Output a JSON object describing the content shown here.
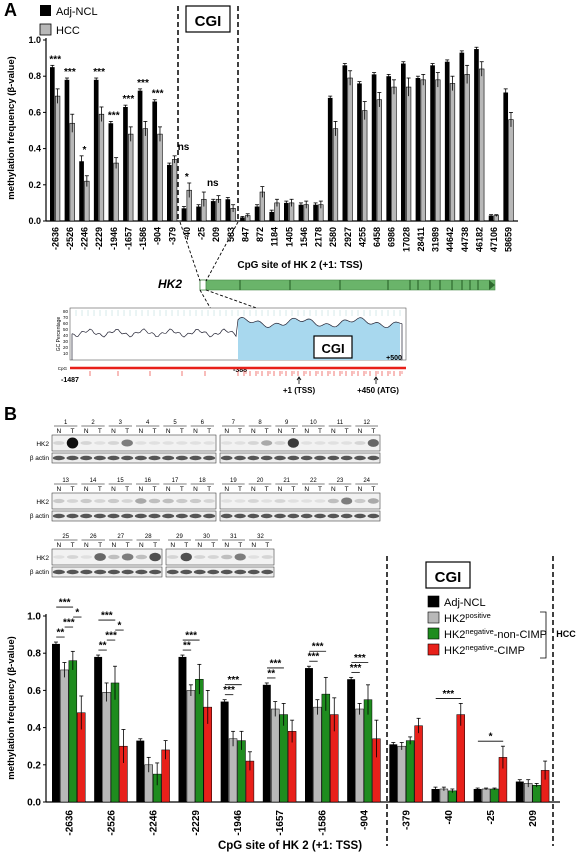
{
  "panelA": {
    "label": "A",
    "cgi_label": "CGI",
    "ylabel": "methylation frequency (β-value)",
    "xlabel": "CpG site of HK 2 (+1: TSS)",
    "legend": [
      "Adj-NCL",
      "HCC"
    ],
    "gene_label": "HK2",
    "island": {
      "ylabel": "GC Percentage",
      "cgi": "CGI",
      "start": "-1487",
      "left": "-388",
      "right": "+500",
      "tss": "+1 (TSS)",
      "atg": "+450 (ATG)",
      "cg": "CpG",
      "yticks": [
        "80",
        "70",
        "60",
        "50",
        "40",
        "30",
        "20",
        "10"
      ]
    }
  },
  "panelB": {
    "label": "B",
    "blot_rows": [
      "HK2",
      "β actin"
    ],
    "lane_letters": [
      "N",
      "T"
    ],
    "blot_groups": [
      [
        "1",
        "2",
        "3",
        "4",
        "5",
        "6"
      ],
      [
        "7",
        "8",
        "9",
        "10",
        "11",
        "12"
      ],
      [
        "13",
        "14",
        "15",
        "16",
        "17",
        "18"
      ],
      [
        "19",
        "20",
        "21",
        "22",
        "23",
        "24"
      ],
      [
        "25",
        "26",
        "27",
        "28"
      ],
      [
        "29",
        "30",
        "31",
        "32"
      ]
    ],
    "cgi_label": "CGI",
    "hcc_label": "HCC",
    "ylabel": "methylation frequency (β-value)",
    "xlabel": "CpG site of HK 2 (+1: TSS)",
    "legend": [
      {
        "text": "Adj-NCL",
        "sup": "",
        "suffix": ""
      },
      {
        "text": "HK2",
        "sup": "positive",
        "suffix": ""
      },
      {
        "text": "HK2",
        "sup": "negative",
        "suffix": "-non-CIMP"
      },
      {
        "text": "HK2",
        "sup": "negative",
        "suffix": "-CIMP"
      }
    ]
  },
  "colors": {
    "black": "#000000",
    "gray": "#b8b8b8",
    "green": "#1e8c1e",
    "red": "#e8201a",
    "island": "#a8d8ee",
    "gene": "#6ab46a"
  },
  "chart_data": [
    {
      "type": "bar",
      "title": "",
      "xlabel": "CpG site of HK 2 (+1: TSS)",
      "ylabel": "methylation frequency (β-value)",
      "ylim": [
        0,
        1.0
      ],
      "yticks": [
        "0.0",
        "0.2",
        "0.4",
        "0.6",
        "0.8",
        "1.0"
      ],
      "legend_position": "top-left",
      "categories": [
        "-2636",
        "-2526",
        "-2246",
        "-2229",
        "-1946",
        "-1657",
        "-1586",
        "-904",
        "-379",
        "-40",
        "-25",
        "209",
        "583",
        "847",
        "872",
        "1184",
        "1405",
        "1546",
        "2178",
        "2580",
        "2927",
        "4255",
        "6458",
        "6986",
        "17028",
        "28411",
        "31989",
        "44642",
        "44738",
        "46182",
        "47106",
        "58659"
      ],
      "series": [
        {
          "name": "Adj-NCL",
          "values": [
            0.85,
            0.78,
            0.33,
            0.78,
            0.54,
            0.63,
            0.72,
            0.66,
            0.31,
            0.07,
            0.08,
            0.11,
            0.12,
            0.02,
            0.08,
            0.05,
            0.1,
            0.09,
            0.09,
            0.68,
            0.86,
            0.76,
            0.81,
            0.8,
            0.87,
            0.79,
            0.86,
            0.88,
            0.93,
            0.95,
            0.03,
            0.71
          ],
          "errors": [
            0.01,
            0.01,
            0.03,
            0.01,
            0.01,
            0.01,
            0.01,
            0.01,
            0.01,
            0.01,
            0.01,
            0.01,
            0.01,
            0.005,
            0.01,
            0.01,
            0.01,
            0.01,
            0.01,
            0.01,
            0.01,
            0.01,
            0.01,
            0.01,
            0.01,
            0.01,
            0.01,
            0.01,
            0.01,
            0.01,
            0.005,
            0.02
          ]
        },
        {
          "name": "HCC",
          "values": [
            0.69,
            0.54,
            0.22,
            0.59,
            0.32,
            0.48,
            0.51,
            0.48,
            0.34,
            0.17,
            0.12,
            0.12,
            0.07,
            0.03,
            0.16,
            0.1,
            0.1,
            0.09,
            0.09,
            0.51,
            0.79,
            0.61,
            0.67,
            0.74,
            0.74,
            0.78,
            0.78,
            0.76,
            0.81,
            0.84,
            0.03,
            0.56
          ],
          "errors": [
            0.04,
            0.05,
            0.03,
            0.04,
            0.03,
            0.04,
            0.04,
            0.04,
            0.02,
            0.04,
            0.04,
            0.02,
            0.02,
            0.01,
            0.03,
            0.02,
            0.02,
            0.02,
            0.02,
            0.04,
            0.04,
            0.05,
            0.04,
            0.04,
            0.05,
            0.03,
            0.04,
            0.04,
            0.05,
            0.04,
            0.005,
            0.04
          ]
        }
      ],
      "annotations": [
        {
          "index": 0,
          "text": "***"
        },
        {
          "index": 1,
          "text": "***"
        },
        {
          "index": 2,
          "text": "*"
        },
        {
          "index": 3,
          "text": "***"
        },
        {
          "index": 4,
          "text": "***"
        },
        {
          "index": 5,
          "text": "***"
        },
        {
          "index": 6,
          "text": "***"
        },
        {
          "index": 7,
          "text": "***"
        },
        {
          "index": 8,
          "text": "ns"
        },
        {
          "index": 9,
          "text": "*"
        },
        {
          "index": 10,
          "text": "ns"
        }
      ]
    },
    {
      "type": "bar",
      "title": "",
      "xlabel": "CpG site of HK 2 (+1: TSS)",
      "ylabel": "methylation frequency (β-value)",
      "ylim": [
        0,
        1.0
      ],
      "yticks": [
        "0.0",
        "0.2",
        "0.4",
        "0.6",
        "0.8",
        "1.0"
      ],
      "legend_position": "top-right",
      "categories": [
        "-2636",
        "-2526",
        "-2246",
        "-2229",
        "-1946",
        "-1657",
        "-1586",
        "-904",
        "-379",
        "-40",
        "-25",
        "209"
      ],
      "series": [
        {
          "name": "Adj-NCL",
          "values": [
            0.85,
            0.78,
            0.33,
            0.78,
            0.54,
            0.63,
            0.72,
            0.66,
            0.31,
            0.07,
            0.07,
            0.11
          ],
          "errors": [
            0.01,
            0.01,
            0.01,
            0.01,
            0.01,
            0.01,
            0.01,
            0.01,
            0.01,
            0.01,
            0.005,
            0.01
          ]
        },
        {
          "name": "HK2positive",
          "values": [
            0.71,
            0.59,
            0.2,
            0.6,
            0.34,
            0.5,
            0.51,
            0.5,
            0.3,
            0.07,
            0.07,
            0.1
          ],
          "errors": [
            0.04,
            0.05,
            0.04,
            0.03,
            0.04,
            0.04,
            0.04,
            0.03,
            0.02,
            0.01,
            0.005,
            0.02
          ]
        },
        {
          "name": "HK2negative-non-CIMP",
          "values": [
            0.76,
            0.64,
            0.15,
            0.66,
            0.33,
            0.47,
            0.58,
            0.55,
            0.33,
            0.06,
            0.07,
            0.09
          ],
          "errors": [
            0.05,
            0.09,
            0.06,
            0.08,
            0.05,
            0.06,
            0.09,
            0.08,
            0.02,
            0.01,
            0.005,
            0.01
          ]
        },
        {
          "name": "HK2negative-CIMP",
          "values": [
            0.48,
            0.3,
            0.28,
            0.51,
            0.22,
            0.38,
            0.47,
            0.34,
            0.41,
            0.47,
            0.24,
            0.17
          ],
          "errors": [
            0.09,
            0.09,
            0.05,
            0.09,
            0.05,
            0.06,
            0.09,
            0.1,
            0.04,
            0.06,
            0.06,
            0.05
          ]
        }
      ],
      "significance": [
        {
          "group": 0,
          "pairs": [
            [
              0,
              1,
              "**"
            ],
            [
              1,
              2,
              "***"
            ],
            [
              2,
              3,
              "*"
            ],
            [
              0,
              2,
              "***"
            ]
          ]
        },
        {
          "group": 1,
          "pairs": [
            [
              0,
              1,
              "**"
            ],
            [
              1,
              2,
              "***"
            ],
            [
              2,
              3,
              "*"
            ],
            [
              0,
              2,
              "***"
            ]
          ]
        },
        {
          "group": 3,
          "pairs": [
            [
              0,
              1,
              "**"
            ],
            [
              0,
              2,
              "***"
            ]
          ]
        },
        {
          "group": 4,
          "pairs": [
            [
              0,
              1,
              "***"
            ],
            [
              0,
              2,
              "***"
            ]
          ]
        },
        {
          "group": 5,
          "pairs": [
            [
              0,
              1,
              "**"
            ],
            [
              0,
              2,
              "***"
            ]
          ]
        },
        {
          "group": 6,
          "pairs": [
            [
              0,
              1,
              "***"
            ],
            [
              0,
              2,
              "***"
            ]
          ]
        },
        {
          "group": 7,
          "pairs": [
            [
              0,
              1,
              "***"
            ],
            [
              0,
              2,
              "***"
            ]
          ]
        },
        {
          "group": 9,
          "pairs": [
            [
              0,
              3,
              "***"
            ]
          ]
        },
        {
          "group": 10,
          "pairs": [
            [
              0,
              3,
              "*"
            ]
          ]
        }
      ]
    }
  ]
}
